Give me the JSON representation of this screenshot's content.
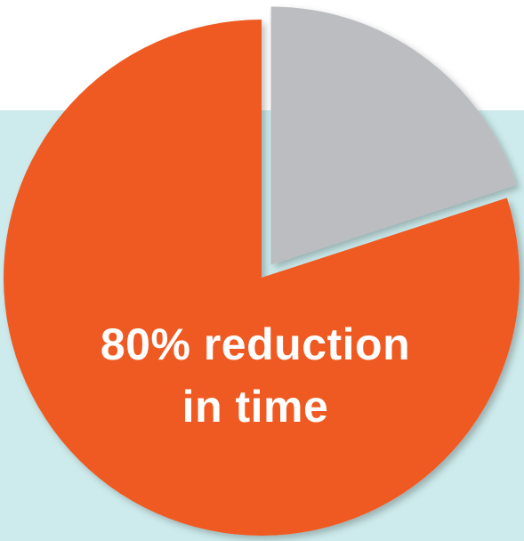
{
  "chart_data": {
    "type": "pie",
    "slices": [
      {
        "label": "80% reduction in time",
        "value": 80,
        "color": "#ef5a24"
      },
      {
        "label": "",
        "value": 20,
        "color": "#bcbdc0"
      }
    ],
    "label_lines": [
      "80% reduction",
      "in time"
    ]
  },
  "colors": {
    "background_panel": "#cdebec",
    "page_background": "#ffffff",
    "label_text": "#ffffff"
  }
}
